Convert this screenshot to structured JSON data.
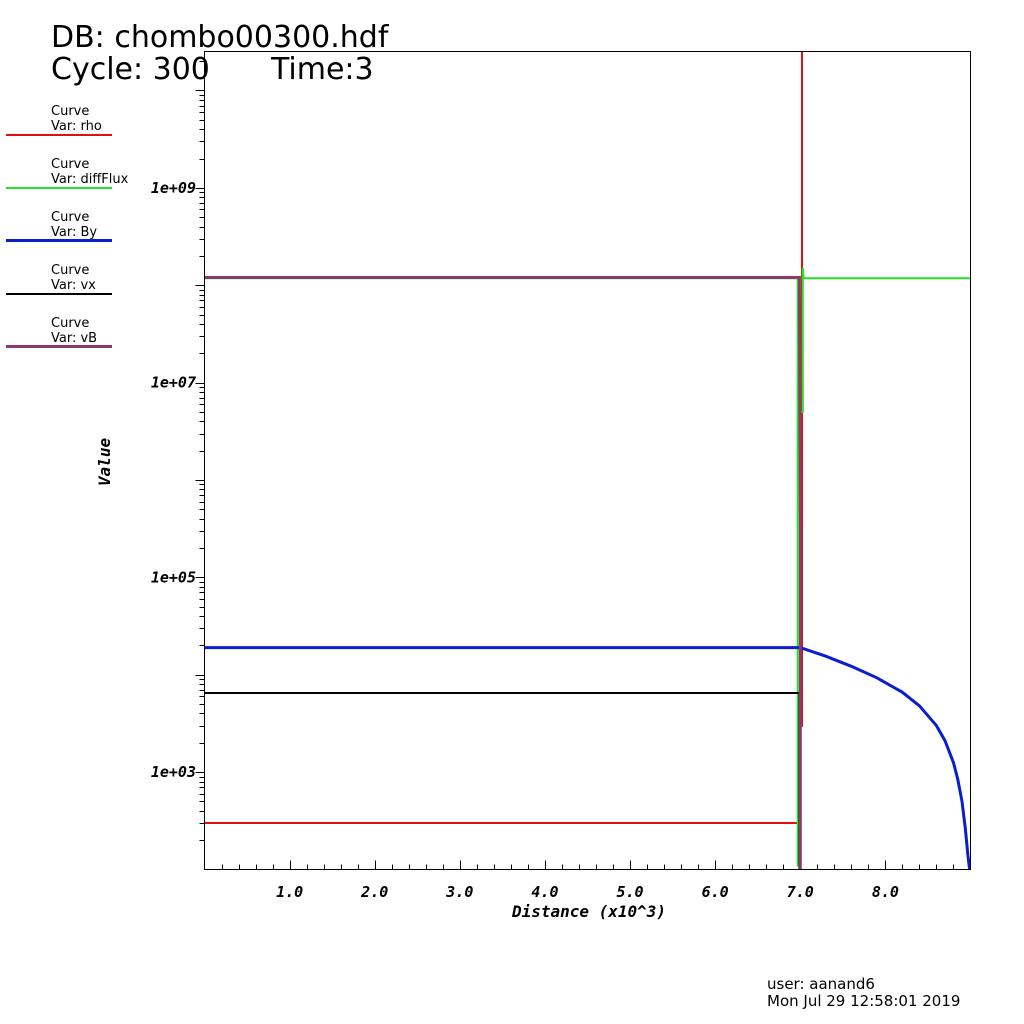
{
  "header": {
    "db": "DB: chombo00300.hdf",
    "cycle": "Cycle: 300",
    "time": "Time:3"
  },
  "legend": [
    {
      "title": "Curve",
      "var": "Var: rho",
      "color": "#e01010",
      "width": 2
    },
    {
      "title": "Curve",
      "var": "Var: diffFlux",
      "color": "#22e622",
      "width": 2
    },
    {
      "title": "Curve",
      "var": "Var: By",
      "color": "#0a1ecc",
      "width": 3
    },
    {
      "title": "Curve",
      "var": "Var: vx",
      "color": "#000000",
      "width": 2
    },
    {
      "title": "Curve",
      "var": "Var: vB",
      "color": "#8a3a6e",
      "width": 3
    }
  ],
  "footer": {
    "user": "user: aanand6",
    "date": "Mon Jul 29 12:58:01 2019"
  },
  "chart_data": {
    "type": "line",
    "xlabel": "Distance (x10^3)",
    "ylabel": "Value",
    "xlim": [
      0,
      9.0
    ],
    "ylim_log10": [
      2.0,
      10.4
    ],
    "yscale": "log",
    "x_ticks": [
      "1.0",
      "2.0",
      "3.0",
      "4.0",
      "5.0",
      "6.0",
      "7.0",
      "8.0"
    ],
    "y_ticks": [
      "1e+03",
      "1e+05",
      "1e+07",
      "1e+09"
    ],
    "legend_position": "left",
    "series": [
      {
        "name": "rho",
        "color": "#e01010",
        "width": 2,
        "points": [
          [
            0,
            300
          ],
          [
            6.98,
            300
          ],
          [
            6.98,
            3000
          ],
          [
            7.02,
            3000
          ],
          [
            7.02,
            25000000000.0
          ]
        ]
      },
      {
        "name": "diffFlux",
        "color": "#22e622",
        "width": 2,
        "points": [
          [
            0,
            118000000.0
          ],
          [
            6.97,
            118000000.0
          ],
          [
            6.97,
            110
          ],
          [
            6.99,
            110
          ],
          [
            6.99,
            800.0
          ],
          [
            7.0,
            800.0
          ],
          [
            7.0,
            5000000.0
          ],
          [
            7.03,
            5000000.0
          ],
          [
            7.03,
            150000000.0
          ],
          [
            7.04,
            118000000.0
          ],
          [
            9.0,
            118000000.0
          ]
        ]
      },
      {
        "name": "By",
        "color": "#0a1ecc",
        "width": 3,
        "points": [
          [
            0,
            19000
          ],
          [
            7.0,
            19000
          ],
          [
            7.3,
            15500
          ],
          [
            7.6,
            12200
          ],
          [
            7.9,
            9300
          ],
          [
            8.2,
            6600
          ],
          [
            8.4,
            4800
          ],
          [
            8.6,
            3000
          ],
          [
            8.7,
            2100
          ],
          [
            8.8,
            1250
          ],
          [
            8.85,
            850
          ],
          [
            8.9,
            500
          ],
          [
            8.94,
            260
          ],
          [
            8.97,
            140
          ],
          [
            8.99,
            100
          ]
        ]
      },
      {
        "name": "vx",
        "color": "#000000",
        "width": 2,
        "points": [
          [
            0,
            6500
          ],
          [
            6.99,
            6500
          ],
          [
            6.99,
            100
          ]
        ]
      },
      {
        "name": "vB",
        "color": "#8a3a6e",
        "width": 3,
        "points": [
          [
            0,
            120000000.0
          ],
          [
            6.99,
            120000000.0
          ],
          [
            7.0,
            300000.0
          ],
          [
            7.0,
            100
          ]
        ]
      }
    ]
  }
}
